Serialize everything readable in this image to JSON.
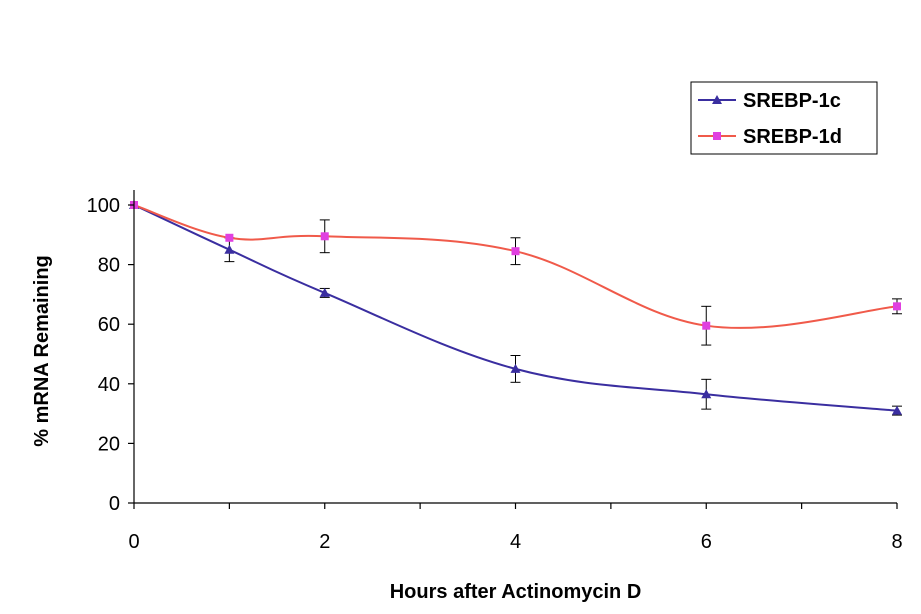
{
  "chart_data": {
    "type": "line",
    "title": "",
    "xlabel": "Hours after Actinomycin D",
    "ylabel": "% mRNA Remaining",
    "xlim": [
      0,
      8
    ],
    "ylim": [
      0,
      100
    ],
    "x_ticks": [
      "0",
      "2",
      "4",
      "6",
      "8"
    ],
    "y_ticks": [
      "0",
      "20",
      "40",
      "60",
      "80",
      "100"
    ],
    "grid": false,
    "legend_position": "top-right",
    "x": [
      0,
      1,
      2,
      4,
      6,
      8
    ],
    "series": [
      {
        "name": "SREBP-1c",
        "color": "#3a2ea0",
        "marker": "triangle",
        "values": [
          100,
          85,
          70.5,
          45,
          36.5,
          31
        ],
        "error": [
          0,
          4,
          1.5,
          4.5,
          5,
          1.5
        ]
      },
      {
        "name": "SREBP-1d",
        "color": "#f05a4a",
        "marker": "square",
        "marker_color": "#e040e0",
        "values": [
          100,
          89,
          89.5,
          84.5,
          59.5,
          66
        ],
        "error": [
          0,
          0,
          5.5,
          4.5,
          6.5,
          2.5
        ]
      }
    ]
  }
}
